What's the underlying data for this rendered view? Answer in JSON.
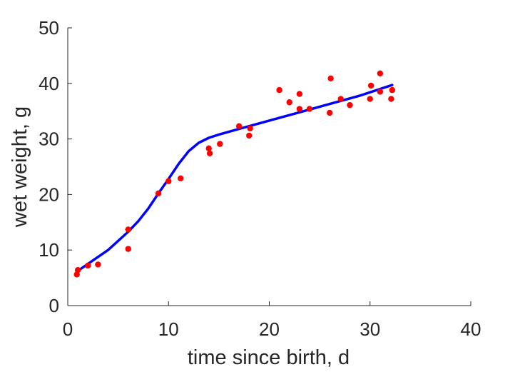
{
  "chart_data": {
    "type": "scatter",
    "title": "",
    "xlabel": "time since birth, d",
    "ylabel": "wet weight, g",
    "xlim": [
      0,
      40
    ],
    "ylim": [
      0,
      50
    ],
    "xticks": [
      0,
      10,
      20,
      30,
      40
    ],
    "yticks": [
      0,
      10,
      20,
      30,
      40,
      50
    ],
    "grid": false,
    "series": [
      {
        "kind": "scatter",
        "color": "#ff0000",
        "points": [
          [
            0.9,
            5.6
          ],
          [
            1.0,
            6.4
          ],
          [
            2.0,
            7.2
          ],
          [
            3.0,
            7.4
          ],
          [
            6.0,
            13.7
          ],
          [
            6.0,
            10.2
          ],
          [
            9.0,
            20.2
          ],
          [
            10.0,
            22.4
          ],
          [
            11.2,
            22.9
          ],
          [
            14.0,
            28.3
          ],
          [
            14.1,
            27.4
          ],
          [
            15.1,
            29.1
          ],
          [
            17.0,
            32.3
          ],
          [
            18.0,
            30.6
          ],
          [
            18.1,
            31.9
          ],
          [
            21.0,
            38.8
          ],
          [
            22.0,
            36.6
          ],
          [
            23.0,
            38.1
          ],
          [
            23.0,
            35.4
          ],
          [
            24.0,
            35.4
          ],
          [
            26.0,
            34.7
          ],
          [
            26.1,
            40.9
          ],
          [
            27.1,
            37.2
          ],
          [
            28.0,
            36.1
          ],
          [
            30.0,
            37.2
          ],
          [
            30.1,
            39.6
          ],
          [
            31.0,
            41.8
          ],
          [
            31.0,
            38.5
          ],
          [
            32.1,
            37.2
          ],
          [
            32.2,
            38.8
          ]
        ]
      },
      {
        "kind": "line",
        "color": "#0000ff",
        "points": [
          [
            0.9,
            6.1
          ],
          [
            2.0,
            7.5
          ],
          [
            4.0,
            10.0
          ],
          [
            6.0,
            13.3
          ],
          [
            7.0,
            15.2
          ],
          [
            8.0,
            17.5
          ],
          [
            9.0,
            20.2
          ],
          [
            10.0,
            22.8
          ],
          [
            11.0,
            25.5
          ],
          [
            12.0,
            27.8
          ],
          [
            13.0,
            29.3
          ],
          [
            14.0,
            30.2
          ],
          [
            15.0,
            30.8
          ],
          [
            17.0,
            31.8
          ],
          [
            20.0,
            33.3
          ],
          [
            23.0,
            34.8
          ],
          [
            26.0,
            36.3
          ],
          [
            29.0,
            37.8
          ],
          [
            32.2,
            39.7
          ]
        ]
      }
    ]
  },
  "colors": {
    "axis": "#262626",
    "marker": "#ff0000",
    "fit_line": "#0000ff"
  }
}
